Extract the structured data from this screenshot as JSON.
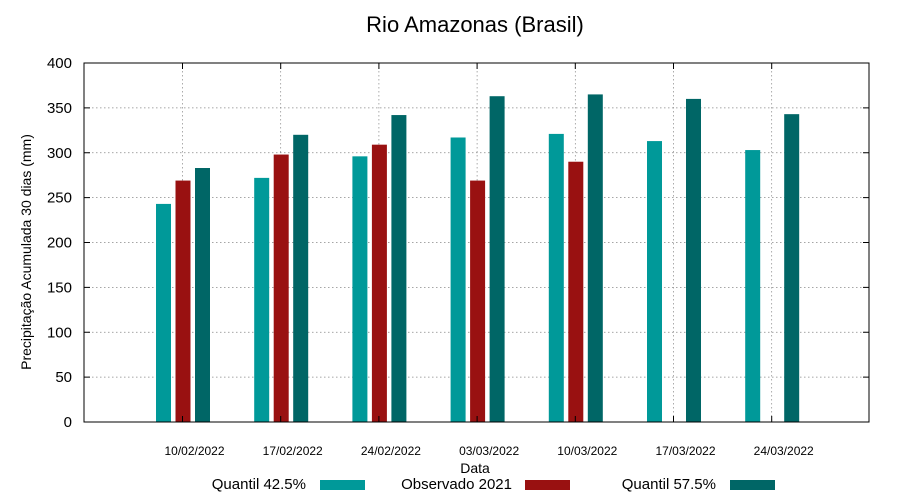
{
  "chart_data": {
    "type": "bar",
    "title": "Rio Amazonas (Brasil)",
    "xlabel": "Data",
    "ylabel": "Precipitação Acumulada 30 dias (mm)",
    "ylim": [
      0,
      400
    ],
    "yticks": [
      0,
      50,
      100,
      150,
      200,
      250,
      300,
      350,
      400
    ],
    "grid": true,
    "legend_position": "bottom",
    "categories": [
      "10/02/2022",
      "17/02/2022",
      "24/02/2022",
      "03/03/2022",
      "10/03/2022",
      "17/03/2022",
      "24/03/2022"
    ],
    "series": [
      {
        "name": "Quantil 42.5%",
        "color": "#009999",
        "values": [
          243,
          272,
          296,
          317,
          321,
          313,
          303
        ]
      },
      {
        "name": "Observado 2021",
        "color": "#991111",
        "values": [
          269,
          298,
          309,
          269,
          290,
          null,
          null
        ]
      },
      {
        "name": "Quantil 57.5%",
        "color": "#006666",
        "values": [
          283,
          320,
          342,
          363,
          365,
          360,
          343
        ]
      }
    ]
  }
}
